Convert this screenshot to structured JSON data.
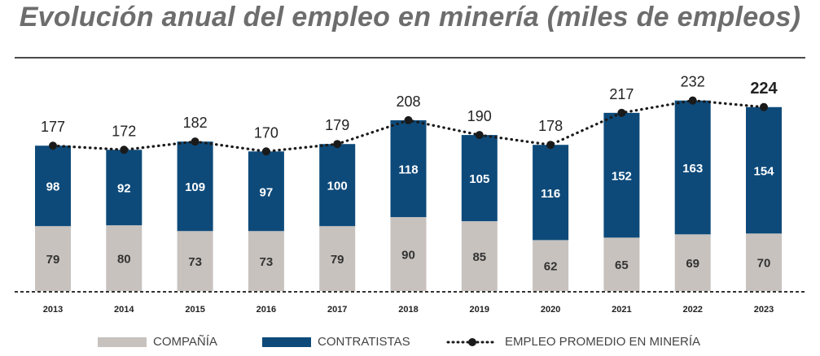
{
  "title": "Evolución anual del empleo en minería (miles de empleos)",
  "colors": {
    "company": "#C7C2BE",
    "contractors": "#0D4A7A",
    "line": "#1a1a1a",
    "title": "#6d6d6d"
  },
  "legend": {
    "company": "COMPAÑÍA",
    "contractors": "CONTRATISTAS",
    "average": "EMPLEO PROMEDIO EN MINERÍA"
  },
  "chart_data": {
    "type": "bar",
    "stacked": true,
    "categories": [
      "2013",
      "2014",
      "2015",
      "2016",
      "2017",
      "2018",
      "2019",
      "2020",
      "2021",
      "2022",
      "2023"
    ],
    "series": [
      {
        "name": "COMPAÑÍA",
        "values": [
          79,
          80,
          73,
          73,
          79,
          90,
          85,
          62,
          65,
          69,
          70
        ]
      },
      {
        "name": "CONTRATISTAS",
        "values": [
          98,
          92,
          109,
          97,
          100,
          118,
          105,
          116,
          152,
          163,
          154
        ]
      },
      {
        "name": "EMPLEO PROMEDIO EN MINERÍA",
        "type": "line",
        "values": [
          177,
          172,
          182,
          170,
          179,
          208,
          190,
          178,
          217,
          232,
          224
        ]
      }
    ],
    "highlight_last_total": true,
    "ylim": [
      0,
      240
    ],
    "xlabel": "",
    "ylabel": ""
  }
}
